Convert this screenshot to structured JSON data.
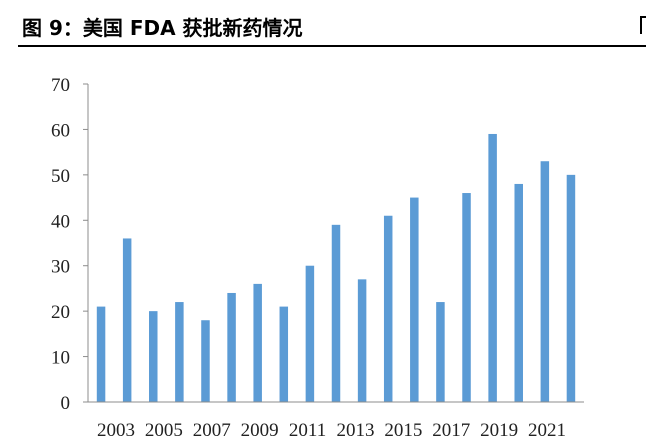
{
  "figure_title": "图 9：美国  FDA 获批新药情况",
  "chart_data": {
    "type": "bar",
    "categories": [
      "2003",
      "2004",
      "2005",
      "2006",
      "2007",
      "2008",
      "2009",
      "2010",
      "2011",
      "2012",
      "2013",
      "2014",
      "2015",
      "2016",
      "2017",
      "2018",
      "2019",
      "2020",
      "2021"
    ],
    "values": [
      21,
      36,
      20,
      22,
      18,
      24,
      26,
      21,
      30,
      39,
      27,
      41,
      45,
      22,
      46,
      59,
      48,
      53,
      50
    ],
    "x_tick_labels": [
      "2003",
      "2005",
      "2007",
      "2009",
      "2011",
      "2013",
      "2015",
      "2017",
      "2019",
      "2021"
    ],
    "y_tick_labels": [
      "0",
      "10",
      "20",
      "30",
      "40",
      "50",
      "60",
      "70"
    ],
    "ylim": [
      0,
      70
    ],
    "title": "",
    "xlabel": "",
    "ylabel": "",
    "grid": false,
    "bar_color": "#5b9bd5"
  }
}
